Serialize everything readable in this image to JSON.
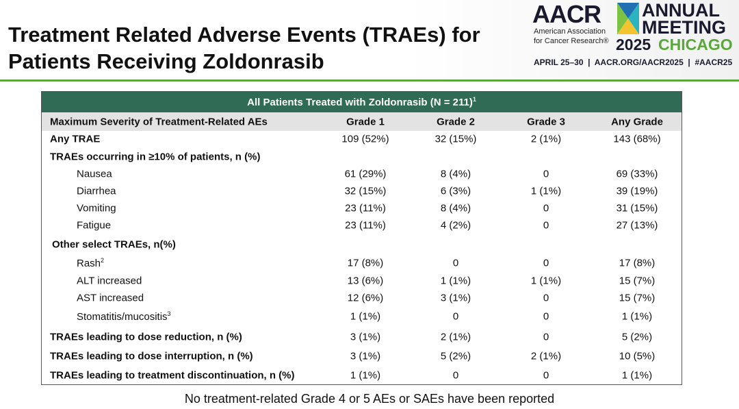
{
  "header": {
    "title_lines": [
      "Treatment Related Adverse Events (TRAEs) for",
      "Patients Receiving Zoldonrasib"
    ],
    "logo": {
      "aacr": "AACR",
      "org_lines": [
        "American Association",
        "for Cancer Research®"
      ],
      "annual": "ANNUAL",
      "meeting": "MEETING",
      "year": "2025",
      "city": "CHICAGO",
      "info": "APRIL 25–30  |  AACR.ORG/AACR2025  |  #AACR25"
    }
  },
  "table": {
    "caption": "All Patients Treated with Zoldonrasib (N = 211)",
    "caption_sup": "1",
    "columns": [
      "Maximum Severity of Treatment-Related AEs",
      "Grade 1",
      "Grade 2",
      "Grade 3",
      "Any Grade"
    ],
    "rows": [
      {
        "type": "total",
        "label": "Any TRAE",
        "cells": [
          "109 (52%)",
          "32 (15%)",
          "2 (1%)",
          "143 (68%)"
        ]
      },
      {
        "type": "section",
        "label": "TRAEs occurring in  ≥10% of patients, n (%)"
      },
      {
        "type": "item",
        "label": "Nausea",
        "cells": [
          "61 (29%)",
          "8 (4%)",
          "0",
          "69 (33%)"
        ]
      },
      {
        "type": "item",
        "label": "Diarrhea",
        "cells": [
          "32 (15%)",
          "6 (3%)",
          "1 (1%)",
          "39 (19%)"
        ]
      },
      {
        "type": "item",
        "label": "Vomiting",
        "cells": [
          "23 (11%)",
          "8 (4%)",
          "0",
          "31 (15%)"
        ]
      },
      {
        "type": "item",
        "label": "Fatigue",
        "cells": [
          "23 (11%)",
          "4 (2%)",
          "0",
          "27 (13%)"
        ]
      },
      {
        "type": "section",
        "label": "Other select TRAEs, n(%)"
      },
      {
        "type": "item",
        "label": "Rash",
        "sup": "2",
        "cells": [
          "17 (8%)",
          "0",
          "0",
          "17 (8%)"
        ]
      },
      {
        "type": "item",
        "label": "ALT increased",
        "cells": [
          "13 (6%)",
          "1 (1%)",
          "1 (1%)",
          "15 (7%)"
        ]
      },
      {
        "type": "item",
        "label": "AST increased",
        "cells": [
          "12 (6%)",
          "3 (1%)",
          "0",
          "15 (7%)"
        ]
      },
      {
        "type": "item",
        "label": "Stomatitis/mucositis",
        "sup": "3",
        "cells": [
          "1 (1%)",
          "0",
          "0",
          "1 (1%)"
        ]
      },
      {
        "type": "total",
        "label": "TRAEs leading to dose reduction, n (%)",
        "cells": [
          "3 (1%)",
          "2 (1%)",
          "0",
          "5 (2%)"
        ]
      },
      {
        "type": "total",
        "label": "TRAEs leading to dose interruption, n (%)",
        "cells": [
          "3 (1%)",
          "5 (2%)",
          "2 (1%)",
          "10 (5%)"
        ]
      },
      {
        "type": "total",
        "label": "TRAEs leading to treatment discontinuation, n (%)",
        "cells": [
          "1 (1%)",
          "0",
          "0",
          "1 (1%)"
        ]
      }
    ]
  },
  "footnote": "No treatment-related Grade 4 or 5 AEs or SAEs have been reported"
}
